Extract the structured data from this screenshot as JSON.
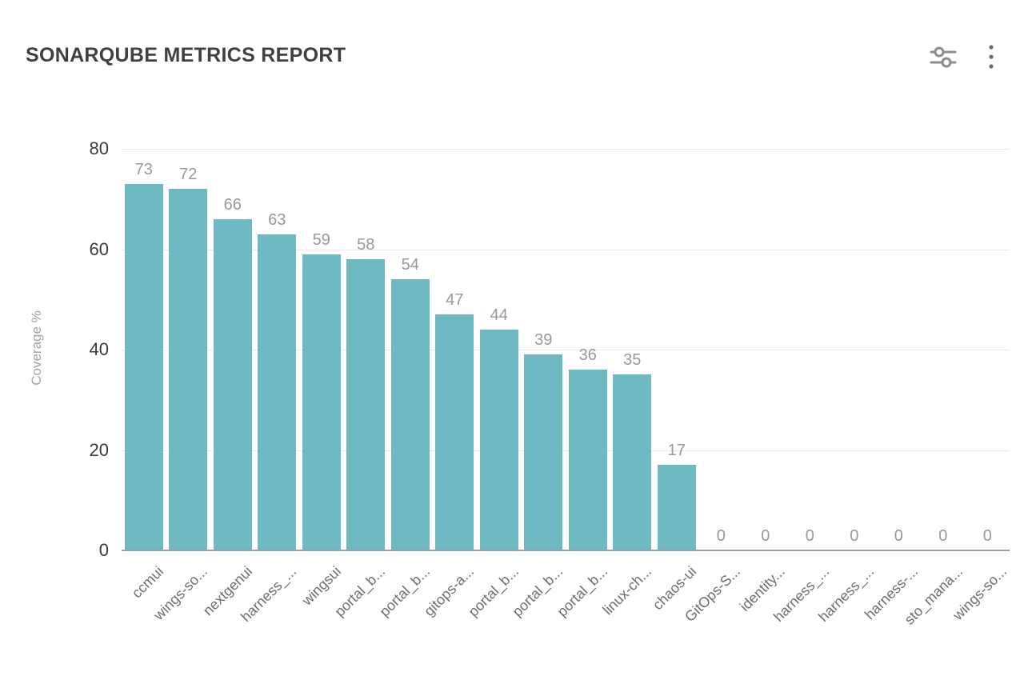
{
  "header": {
    "title": "SONARQUBE METRICS REPORT",
    "filter_icon": "filter-sliders-icon",
    "menu_icon": "kebab-menu-icon"
  },
  "chart_data": {
    "type": "bar",
    "title": "SONARQUBE METRICS REPORT",
    "categories": [
      "ccmui",
      "wings-so...",
      "nextgenui",
      "harness_...",
      "wingsui",
      "portal_b...",
      "portal_b...",
      "gitops-a...",
      "portal_b...",
      "portal_b...",
      "portal_b...",
      "linux-ch...",
      "chaos-ui",
      "GitOps-S...",
      "identity...",
      "harness_...",
      "harness_...",
      "harness-...",
      "sto_mana...",
      "wings-so..."
    ],
    "values": [
      73,
      72,
      66,
      63,
      59,
      58,
      54,
      47,
      44,
      39,
      36,
      35,
      17,
      0,
      0,
      0,
      0,
      0,
      0,
      0
    ],
    "xlabel": "",
    "ylabel": "Coverage %",
    "yticks": [
      0,
      20,
      40,
      60,
      80
    ],
    "ylim": [
      0,
      80
    ],
    "grid": true,
    "legend_position": "none",
    "bar_color": "#6FB9C2",
    "gridline_color": "#e8e8e8",
    "baseline_color": "#98a0a8",
    "value_label_color": "#999999"
  }
}
